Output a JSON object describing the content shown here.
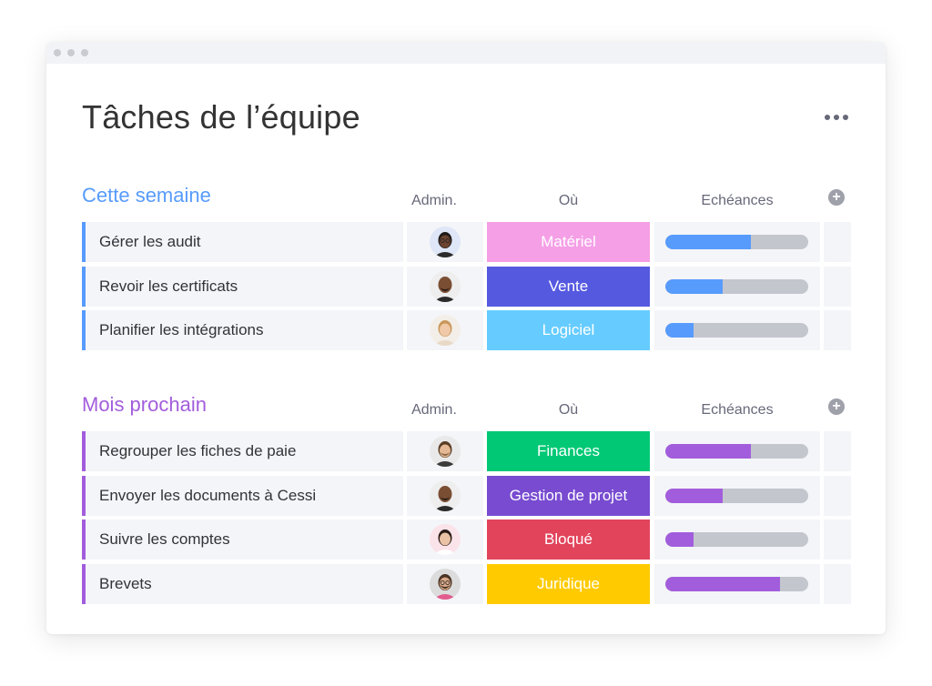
{
  "window": {
    "title": "Tâches de l’équipe"
  },
  "accent_colors": {
    "group1": "#579bfc",
    "group2": "#a25ddc"
  },
  "groups": [
    {
      "title": "Cette semaine",
      "color": "#579bfc",
      "columns": {
        "admin": "Admin.",
        "ou": "Où",
        "echeances": "Echéances"
      },
      "rows": [
        {
          "name": "Gérer les audit",
          "status": "Matériel",
          "status_color": "#f59fe6",
          "progress": 0.6,
          "avatar": "avatar-woman-glasses"
        },
        {
          "name": "Revoir les certificats",
          "status": "Vente",
          "status_color": "#5559df",
          "progress": 0.4,
          "avatar": "avatar-man-bald"
        },
        {
          "name": "Planifier les intégrations",
          "status": "Logiciel",
          "status_color": "#66ccff",
          "progress": 0.2,
          "avatar": "avatar-woman-blonde"
        }
      ]
    },
    {
      "title": "Mois prochain",
      "color": "#a25ddc",
      "columns": {
        "admin": "Admin.",
        "ou": "Où",
        "echeances": "Echéances"
      },
      "rows": [
        {
          "name": "Regrouper les fiches de paie",
          "status": "Finances",
          "status_color": "#00c875",
          "progress": 0.6,
          "avatar": "avatar-man-beard"
        },
        {
          "name": "Envoyer les documents à Cessi",
          "status": "Gestion de projet",
          "status_color": "#784bd1",
          "progress": 0.4,
          "avatar": "avatar-man-bald"
        },
        {
          "name": "Suivre les comptes",
          "status": "Bloqué",
          "status_color": "#e2445c",
          "progress": 0.2,
          "avatar": "avatar-woman-brunette"
        },
        {
          "name": "Brevets",
          "status": "Juridique",
          "status_color": "#ffcb00",
          "progress": 0.8,
          "avatar": "avatar-man-glasses"
        }
      ]
    }
  ]
}
